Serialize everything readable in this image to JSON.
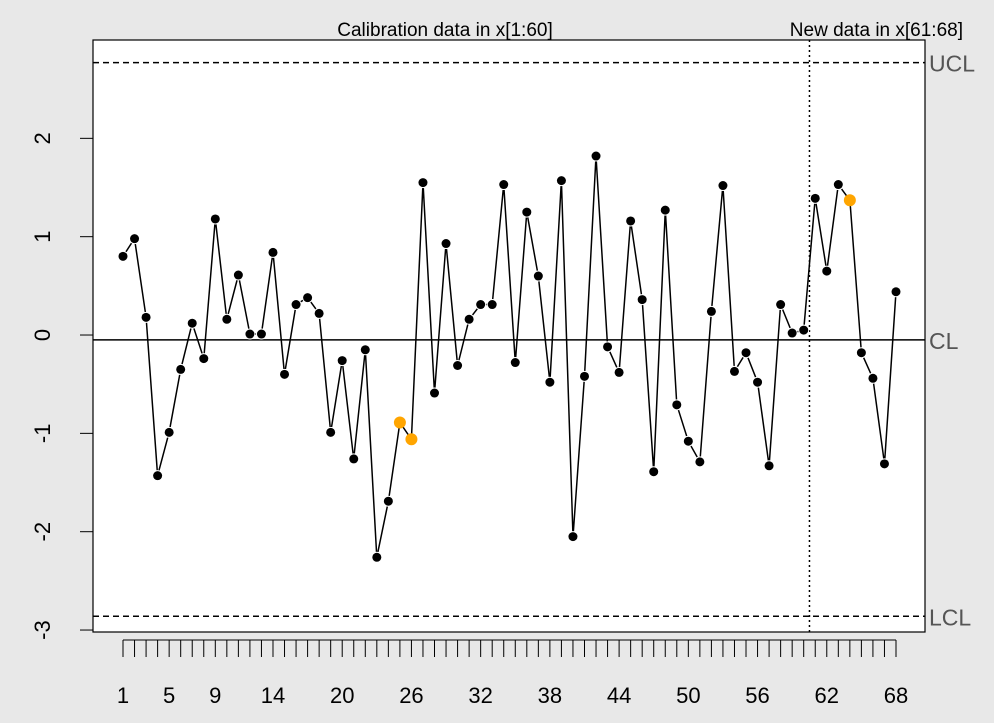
{
  "chart_data": {
    "type": "line",
    "title": "Calibration data in x[1:60]",
    "subtitle": "New data in x[61:68]",
    "categories": [
      "1",
      null,
      null,
      null,
      "5",
      null,
      null,
      null,
      "9",
      null,
      null,
      null,
      null,
      "14",
      null,
      null,
      null,
      null,
      null,
      "20",
      null,
      null,
      null,
      null,
      null,
      "26",
      null,
      null,
      null,
      null,
      null,
      "32",
      null,
      null,
      null,
      null,
      null,
      "38",
      null,
      null,
      null,
      null,
      null,
      "44",
      null,
      null,
      null,
      null,
      null,
      "50",
      null,
      null,
      null,
      null,
      null,
      "56",
      null,
      null,
      null,
      null,
      null,
      "62",
      null,
      null,
      null,
      null,
      null,
      "68"
    ],
    "series": [
      {
        "color": "#000000",
        "values": [
          0.8,
          0.98,
          0.18,
          -1.43,
          -0.99,
          -0.35,
          0.12,
          -0.24,
          1.18,
          0.16,
          0.61,
          0.01,
          0.01,
          0.84,
          -0.4,
          0.31,
          0.38,
          0.22,
          -0.99,
          -0.26,
          -1.26,
          -0.15,
          -2.26,
          -1.69,
          -0.89,
          -1.06,
          1.55,
          -0.59,
          0.93,
          -0.31,
          0.16,
          0.31,
          0.31,
          1.53,
          -0.28,
          1.25,
          0.6,
          -0.48,
          1.57,
          -2.05,
          -0.42,
          1.82,
          -0.12,
          -0.38,
          1.16,
          0.36,
          -1.39,
          1.27,
          -0.71,
          -1.08,
          -1.29,
          0.24,
          1.52,
          -0.37,
          -0.18,
          -0.48,
          -1.33,
          0.31,
          0.02,
          0.05,
          1.39,
          0.65,
          1.53,
          1.37,
          -0.18,
          -0.44,
          -1.31,
          0.44
        ]
      }
    ],
    "highlight": {
      "color": "#ffa500",
      "points": [
        25,
        26,
        64
      ]
    },
    "split_after": 60,
    "limits": [
      {
        "label": "UCL",
        "value": 2.77
      },
      {
        "label": "CL",
        "value": -0.05
      },
      {
        "label": "LCL",
        "value": -2.86
      }
    ],
    "ylim": [
      -3.02,
      3.0
    ],
    "yticks": [
      -3,
      -2,
      -1,
      0,
      1,
      2
    ]
  }
}
